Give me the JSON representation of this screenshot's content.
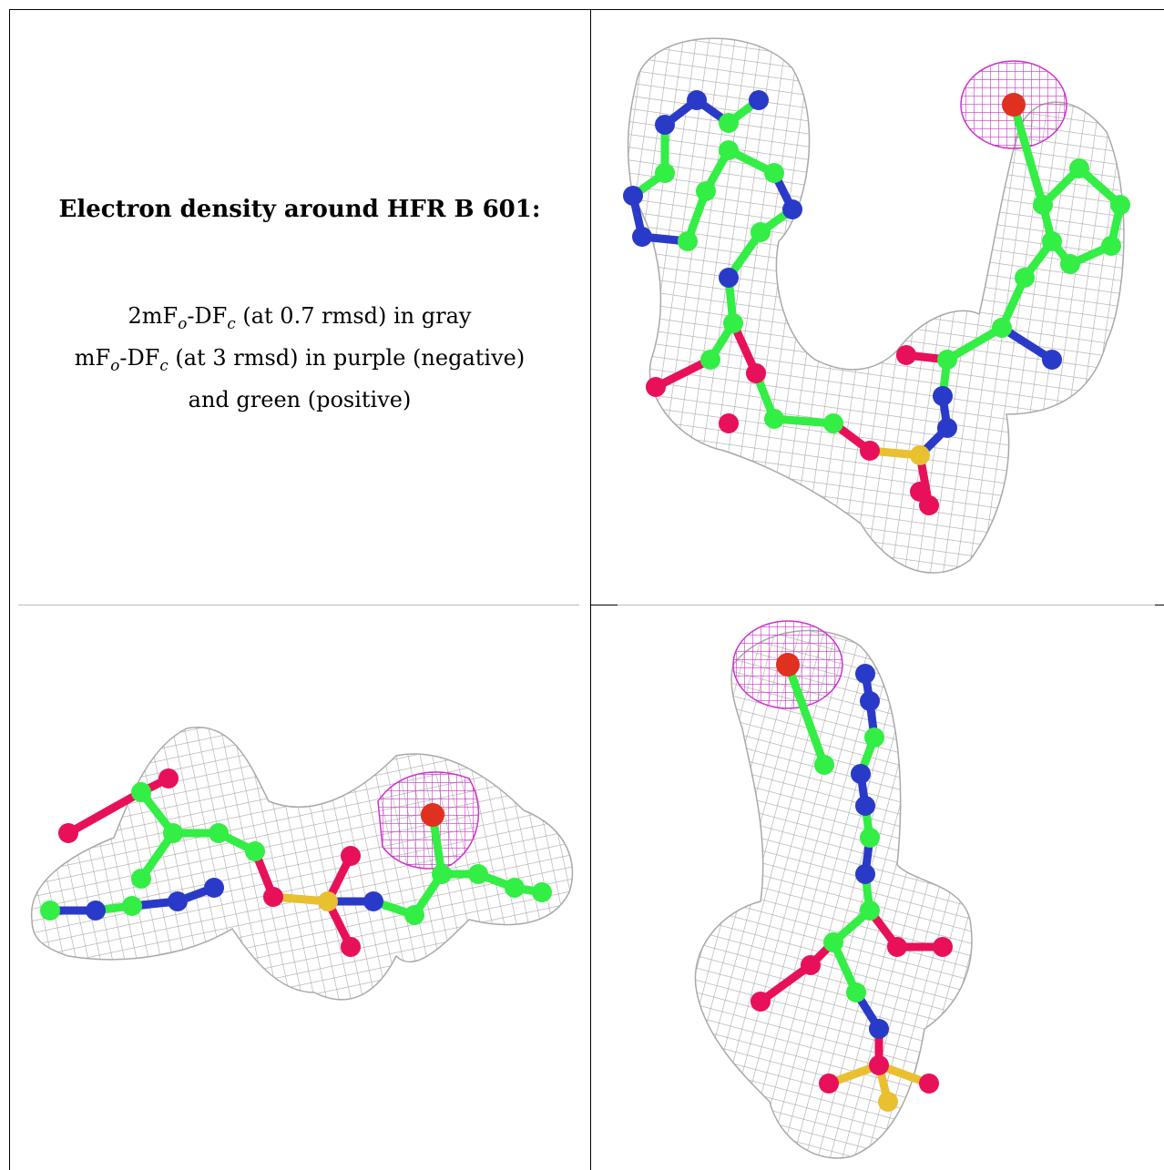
{
  "caption": {
    "title": "Electron density around HFR B 601:",
    "line1_prefix": "2mF",
    "line1_sub_o": "o",
    "line1_mid": "-DF",
    "line1_sub_c": "c",
    "line1_suffix": " (at 0.7 rmsd) in gray",
    "line2_prefix": "mF",
    "line2_sub_o": "o",
    "line2_mid": "-DF",
    "line2_sub_c": "c",
    "line2_suffix": " (at 3 rmsd) in purple (negative)",
    "line3": "and green (positive)"
  },
  "colors": {
    "mesh_gray": "#a9a9a9",
    "mesh_purple": "#cc33cc",
    "carbon": "#33ee44",
    "nitrogen": "#2a3ac8",
    "oxygen": "#e8105a",
    "sulfur": "#e8c030",
    "bromine_red": "#e03020"
  },
  "panels": [
    {
      "view": "front-view-molecule-panel"
    },
    {
      "view": "side-view-molecule-panel"
    },
    {
      "view": "top-view-molecule-panel"
    }
  ]
}
